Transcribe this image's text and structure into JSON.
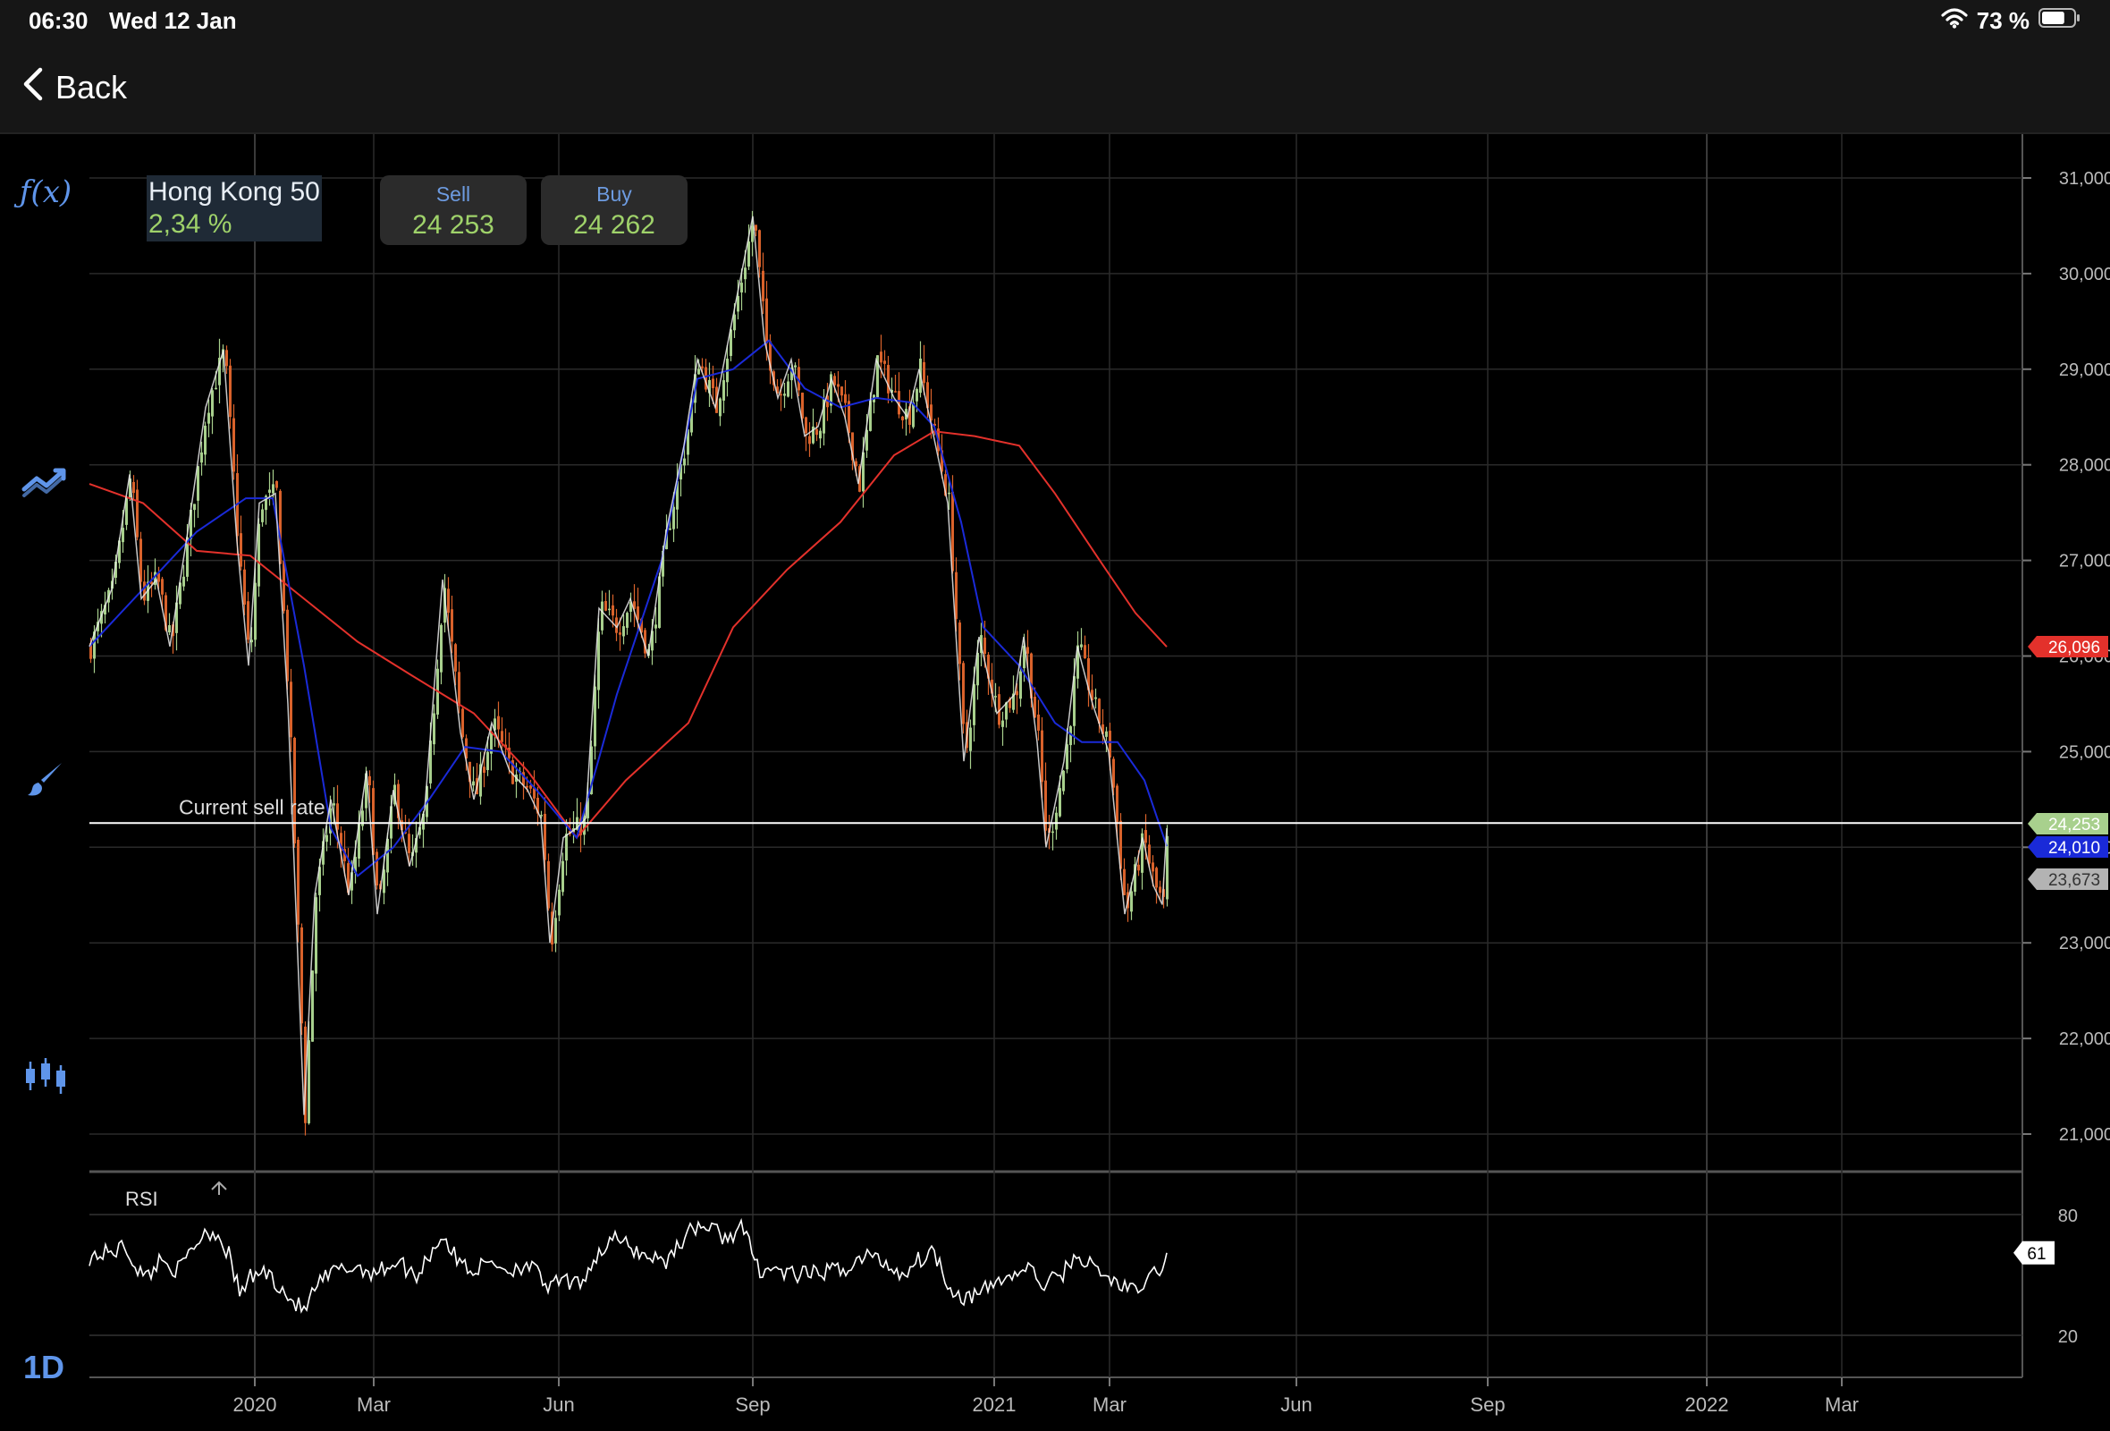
{
  "status_bar": {
    "time": "06:30",
    "date": "Wed 12 Jan",
    "battery": "73 %",
    "battery_level": 0.73
  },
  "nav": {
    "back_label": "Back"
  },
  "instrument": {
    "name": "Hong Kong 50",
    "change": "2,34 %"
  },
  "quotes": {
    "sell_label": "Sell",
    "sell_value": "24 253",
    "buy_label": "Buy",
    "buy_value": "24 262"
  },
  "toolbar": {
    "function_icon_label": "ƒ(x)",
    "timeframe": "1D"
  },
  "colors": {
    "up": "#a8d08d",
    "down": "#d9622b",
    "ma_fast": "#1a2ad8",
    "ma_slow": "#e3312b",
    "price_line": "#ffffff",
    "accent": "#5f95ea"
  },
  "chart_data": {
    "type": "candlestick",
    "price_annotation": "Current sell rate",
    "y_ticks": [
      "31,000",
      "30,000",
      "29,000",
      "28,000",
      "27,000",
      "26,000",
      "25,000",
      "24,000",
      "23,000",
      "22,000",
      "21,000"
    ],
    "y_range": [
      20900,
      31350
    ],
    "x_ticks": [
      "2020",
      "Mar",
      "Jun",
      "Sep",
      "2021",
      "Mar",
      "Jun",
      "Sep",
      "2022",
      "Mar"
    ],
    "price_badges": [
      {
        "label": "26,096",
        "value": 26096,
        "color": "#e3312b",
        "text_color": "#ffffff"
      },
      {
        "label": "24,253",
        "value": 24253,
        "color": "#a8d08d",
        "text_color": "#ffffff"
      },
      {
        "label": "24,010",
        "value": 24010,
        "color": "#1a2ad8",
        "text_color": "#ffffff"
      },
      {
        "label": "23,673",
        "value": 23673,
        "color": "#b3b3b3",
        "text_color": "#333333"
      }
    ],
    "current_sell": 24253,
    "price_path": [
      [
        0,
        26100
      ],
      [
        25,
        26700
      ],
      [
        45,
        27900
      ],
      [
        58,
        26600
      ],
      [
        75,
        26800
      ],
      [
        90,
        26100
      ],
      [
        110,
        27300
      ],
      [
        130,
        28600
      ],
      [
        150,
        29200
      ],
      [
        165,
        27200
      ],
      [
        178,
        25900
      ],
      [
        190,
        27600
      ],
      [
        208,
        27700
      ],
      [
        222,
        25500
      ],
      [
        240,
        21200
      ],
      [
        252,
        23500
      ],
      [
        270,
        24500
      ],
      [
        290,
        23500
      ],
      [
        310,
        24800
      ],
      [
        322,
        23300
      ],
      [
        340,
        24600
      ],
      [
        358,
        23800
      ],
      [
        375,
        24400
      ],
      [
        395,
        26800
      ],
      [
        415,
        25200
      ],
      [
        430,
        24500
      ],
      [
        450,
        25300
      ],
      [
        470,
        24800
      ],
      [
        490,
        24600
      ],
      [
        505,
        24300
      ],
      [
        515,
        23000
      ],
      [
        530,
        24100
      ],
      [
        545,
        24200
      ],
      [
        555,
        24300
      ],
      [
        570,
        26500
      ],
      [
        590,
        26300
      ],
      [
        605,
        26600
      ],
      [
        625,
        26000
      ],
      [
        645,
        27300
      ],
      [
        665,
        28200
      ],
      [
        680,
        29100
      ],
      [
        700,
        28600
      ],
      [
        725,
        29800
      ],
      [
        742,
        30600
      ],
      [
        755,
        29300
      ],
      [
        770,
        28700
      ],
      [
        785,
        29100
      ],
      [
        800,
        28300
      ],
      [
        815,
        28400
      ],
      [
        830,
        28900
      ],
      [
        845,
        28500
      ],
      [
        860,
        27800
      ],
      [
        880,
        29100
      ],
      [
        900,
        28700
      ],
      [
        915,
        28500
      ],
      [
        928,
        29000
      ],
      [
        942,
        28400
      ],
      [
        960,
        27600
      ],
      [
        978,
        24900
      ],
      [
        995,
        26200
      ],
      [
        1015,
        25400
      ],
      [
        1035,
        25600
      ],
      [
        1045,
        26200
      ],
      [
        1060,
        25100
      ],
      [
        1070,
        24000
      ],
      [
        1090,
        24900
      ],
      [
        1105,
        26100
      ],
      [
        1122,
        25500
      ],
      [
        1140,
        25000
      ],
      [
        1158,
        23300
      ],
      [
        1178,
        24100
      ],
      [
        1190,
        23600
      ],
      [
        1200,
        23400
      ],
      [
        1205,
        24200
      ]
    ],
    "ma_fast": [
      [
        0,
        26100
      ],
      [
        60,
        26700
      ],
      [
        120,
        27300
      ],
      [
        175,
        27650
      ],
      [
        205,
        27650
      ],
      [
        240,
        25900
      ],
      [
        270,
        24200
      ],
      [
        300,
        23700
      ],
      [
        340,
        24000
      ],
      [
        380,
        24500
      ],
      [
        420,
        25050
      ],
      [
        460,
        25000
      ],
      [
        500,
        24600
      ],
      [
        545,
        24100
      ],
      [
        590,
        25600
      ],
      [
        640,
        27000
      ],
      [
        680,
        28900
      ],
      [
        720,
        29000
      ],
      [
        760,
        29300
      ],
      [
        800,
        28800
      ],
      [
        840,
        28600
      ],
      [
        880,
        28700
      ],
      [
        920,
        28650
      ],
      [
        945,
        28400
      ],
      [
        975,
        27400
      ],
      [
        1000,
        26300
      ],
      [
        1040,
        25900
      ],
      [
        1080,
        25300
      ],
      [
        1110,
        25100
      ],
      [
        1150,
        25100
      ],
      [
        1180,
        24700
      ],
      [
        1205,
        24010
      ]
    ],
    "ma_slow": [
      [
        0,
        27800
      ],
      [
        60,
        27600
      ],
      [
        120,
        27100
      ],
      [
        180,
        27050
      ],
      [
        240,
        26600
      ],
      [
        300,
        26150
      ],
      [
        360,
        25800
      ],
      [
        430,
        25400
      ],
      [
        490,
        24800
      ],
      [
        545,
        24100
      ],
      [
        600,
        24700
      ],
      [
        670,
        25300
      ],
      [
        720,
        26300
      ],
      [
        780,
        26900
      ],
      [
        840,
        27400
      ],
      [
        900,
        28100
      ],
      [
        945,
        28350
      ],
      [
        990,
        28300
      ],
      [
        1040,
        28200
      ],
      [
        1080,
        27700
      ],
      [
        1130,
        27000
      ],
      [
        1170,
        26450
      ],
      [
        1205,
        26096
      ]
    ]
  },
  "rsi": {
    "label": "RSI",
    "levels": [
      "80",
      "20"
    ],
    "value": "61",
    "path": [
      [
        0,
        59
      ],
      [
        20,
        61
      ],
      [
        40,
        64
      ],
      [
        50,
        56
      ],
      [
        62,
        48
      ],
      [
        80,
        58
      ],
      [
        100,
        52
      ],
      [
        115,
        63
      ],
      [
        130,
        72
      ],
      [
        145,
        70
      ],
      [
        158,
        58
      ],
      [
        168,
        40
      ],
      [
        178,
        48
      ],
      [
        195,
        52
      ],
      [
        210,
        46
      ],
      [
        225,
        38
      ],
      [
        240,
        32
      ],
      [
        255,
        45
      ],
      [
        275,
        52
      ],
      [
        300,
        54
      ],
      [
        320,
        51
      ],
      [
        345,
        57
      ],
      [
        365,
        49
      ],
      [
        380,
        60
      ],
      [
        395,
        70
      ],
      [
        410,
        58
      ],
      [
        430,
        52
      ],
      [
        450,
        57
      ],
      [
        470,
        52
      ],
      [
        490,
        56
      ],
      [
        515,
        43
      ],
      [
        530,
        48
      ],
      [
        545,
        44
      ],
      [
        565,
        58
      ],
      [
        585,
        68
      ],
      [
        600,
        65
      ],
      [
        620,
        60
      ],
      [
        645,
        57
      ],
      [
        660,
        66
      ],
      [
        680,
        75
      ],
      [
        700,
        72
      ],
      [
        712,
        68
      ],
      [
        730,
        74
      ],
      [
        748,
        53
      ],
      [
        765,
        53
      ],
      [
        785,
        50
      ],
      [
        805,
        50
      ],
      [
        830,
        52
      ],
      [
        850,
        54
      ],
      [
        870,
        60
      ],
      [
        890,
        56
      ],
      [
        910,
        50
      ],
      [
        925,
        57
      ],
      [
        945,
        62
      ],
      [
        960,
        46
      ],
      [
        975,
        39
      ],
      [
        995,
        40
      ],
      [
        1015,
        47
      ],
      [
        1035,
        50
      ],
      [
        1050,
        54
      ],
      [
        1065,
        45
      ],
      [
        1085,
        49
      ],
      [
        1105,
        60
      ],
      [
        1122,
        54
      ],
      [
        1140,
        48
      ],
      [
        1155,
        45
      ],
      [
        1170,
        41
      ],
      [
        1185,
        48
      ],
      [
        1200,
        55
      ],
      [
        1205,
        61
      ]
    ]
  }
}
